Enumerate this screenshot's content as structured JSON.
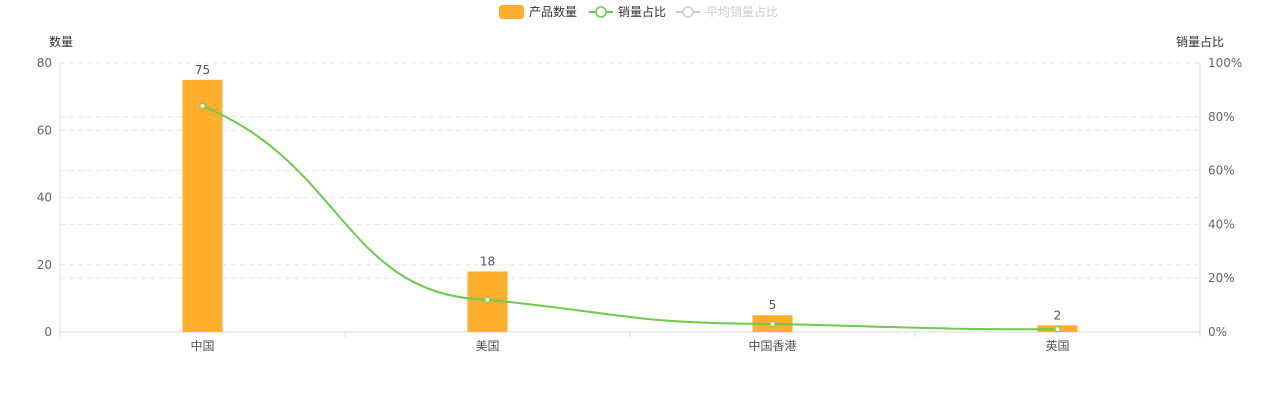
{
  "legend": {
    "bar_label": "产品数量",
    "line_label": "销量占比",
    "avg_label": "平均销量占比"
  },
  "axes": {
    "left_name": "数量",
    "right_name": "销量占比"
  },
  "colors": {
    "bar": "#FFAE2E",
    "line": "#6CCB4B",
    "inactive": "#CCCCCC"
  },
  "chart_data": {
    "type": "bar",
    "title": "",
    "categories": [
      "中国",
      "美国",
      "中国香港",
      "英国"
    ],
    "series": [
      {
        "name": "产品数量",
        "type": "bar",
        "axis": "left",
        "values": [
          75,
          18,
          5,
          2
        ]
      },
      {
        "name": "销量占比",
        "type": "line",
        "axis": "right",
        "values": [
          84,
          12,
          3,
          1
        ]
      }
    ],
    "y_left": {
      "label": "数量",
      "min": 0,
      "max": 80,
      "ticks": [
        0,
        20,
        40,
        60,
        80
      ]
    },
    "y_right": {
      "label": "销量占比",
      "min": 0,
      "max": 100,
      "ticks": [
        "0%",
        "20%",
        "40%",
        "60%",
        "80%",
        "100%"
      ]
    },
    "grid": true,
    "legend_position": "top-center"
  }
}
